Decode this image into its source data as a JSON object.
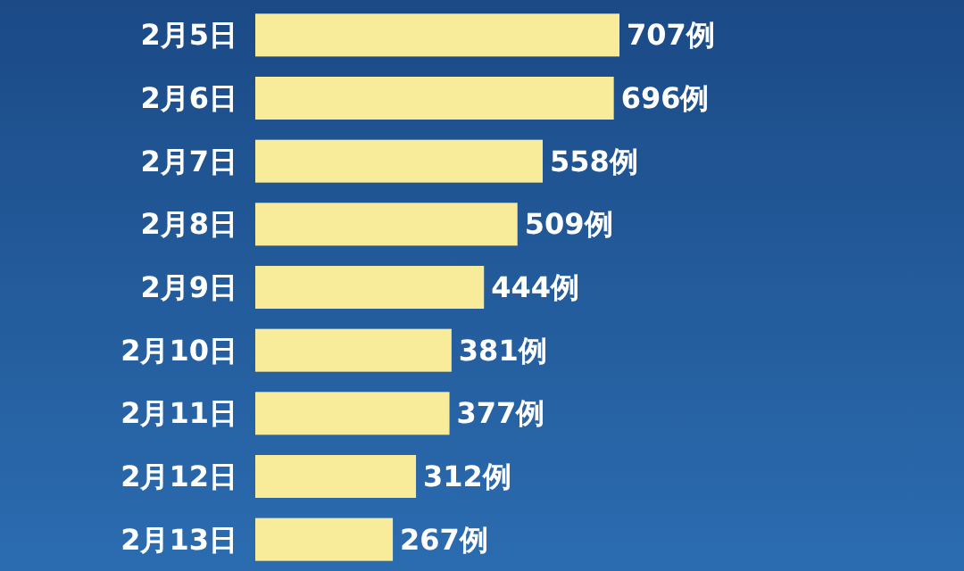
{
  "chart_data": {
    "type": "bar",
    "orientation": "horizontal",
    "color": "#f8ec9b",
    "categories": [
      "2月5日",
      "2月6日",
      "2月7日",
      "2月8日",
      "2月9日",
      "2月10日",
      "2月11日",
      "2月12日",
      "2月13日"
    ],
    "values": [
      707,
      696,
      558,
      509,
      444,
      381,
      377,
      312,
      267
    ],
    "value_labels": [
      "707例",
      "696例",
      "558例",
      "509例",
      "444例",
      "381例",
      "377例",
      "312例",
      "267例"
    ]
  }
}
